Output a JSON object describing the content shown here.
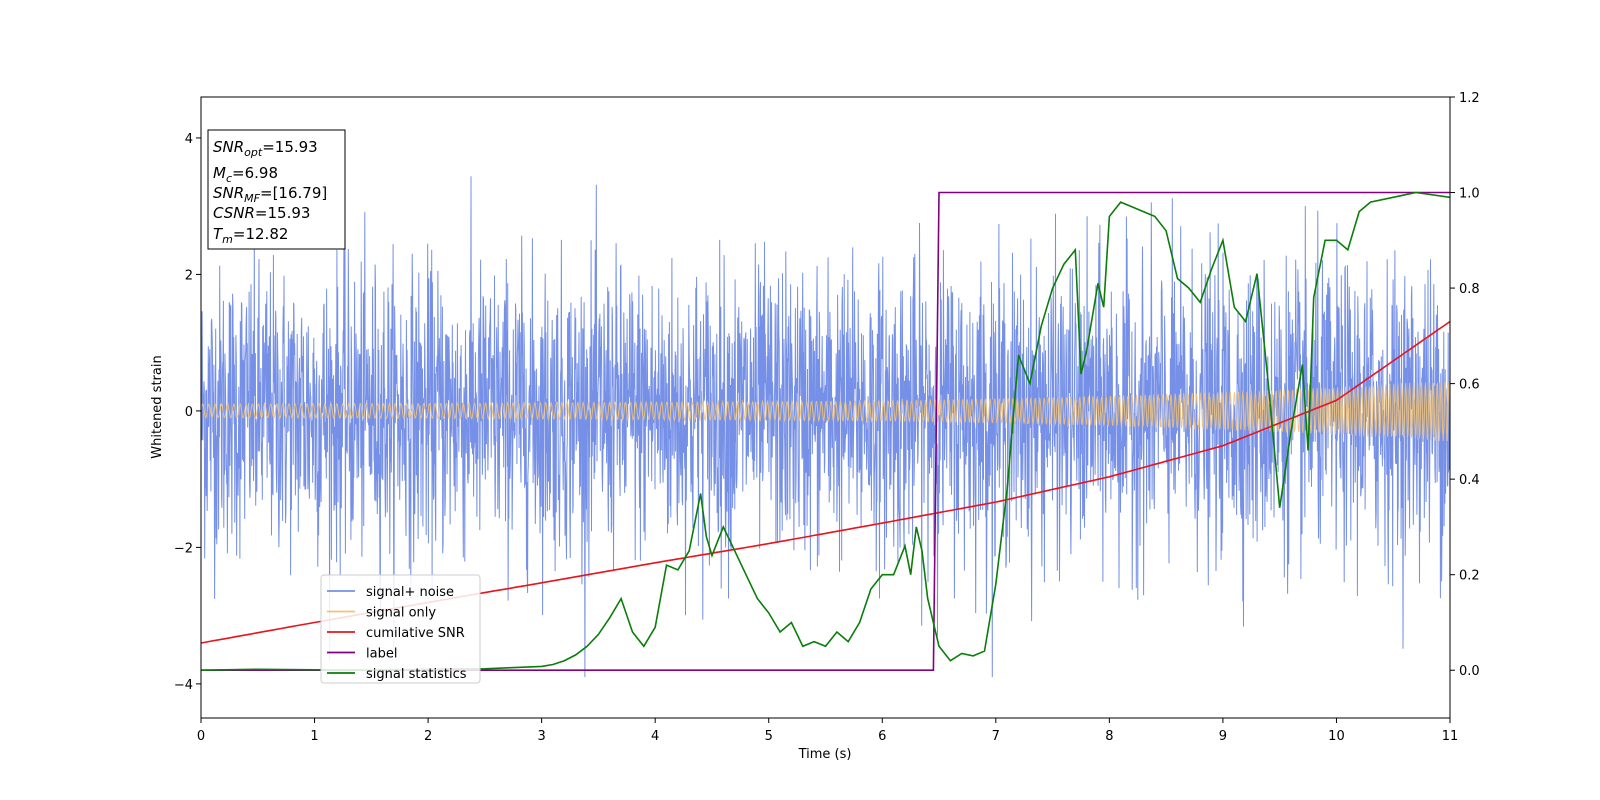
{
  "chart_data": {
    "type": "line",
    "xlabel": "Time (s)",
    "ylabel": "Whitened strain",
    "xlim": [
      0,
      11
    ],
    "ylim_left": [
      -4.5,
      4.6
    ],
    "ylim_right": [
      -0.1,
      1.2
    ],
    "x_ticks": [
      "0",
      "1",
      "2",
      "3",
      "4",
      "5",
      "6",
      "7",
      "8",
      "9",
      "10",
      "11"
    ],
    "y_ticks_left": [
      "−4",
      "−2",
      "0",
      "2",
      "4"
    ],
    "y_ticks_right": [
      "0.0",
      "0.2",
      "0.4",
      "0.6",
      "0.8",
      "1.0",
      "1.2"
    ],
    "grid": false,
    "legend_position": "lower-left",
    "annotation": {
      "snr_opt": {
        "base": "SNR",
        "sub": "opt",
        "value": "=15.93"
      },
      "m_c": {
        "base": "M",
        "sub": "c",
        "value": "=6.98"
      },
      "snr_mf": {
        "base": "SNR",
        "sub": "MF",
        "value": "=[16.79]"
      },
      "csnr": {
        "base": "CSNR",
        "sub": "",
        "value": "=15.93"
      },
      "t_m": {
        "base": "T",
        "sub": "m",
        "value": "=12.82"
      }
    },
    "series": [
      {
        "name": "signal+ noise",
        "color": "#7590e6",
        "axis": "left",
        "description_values": {
          "x_range": [
            0,
            11
          ],
          "approx_envelope": [
            -3.9,
            4.2
          ]
        }
      },
      {
        "name": "signal only",
        "color": "#f0c27a",
        "axis": "left",
        "amplitude": {
          "x": [
            0,
            2,
            4,
            6,
            7,
            8,
            9,
            10,
            11
          ],
          "y": [
            0.1,
            0.11,
            0.13,
            0.15,
            0.18,
            0.22,
            0.28,
            0.35,
            0.45
          ]
        }
      },
      {
        "name": "cumilative SNR",
        "color": "#e8141c",
        "axis": "right",
        "x": [
          0,
          1,
          2,
          3,
          4,
          5,
          6,
          7,
          8,
          9,
          10,
          11
        ],
        "y": [
          0.057,
          0.1,
          0.142,
          0.183,
          0.225,
          0.265,
          0.308,
          0.352,
          0.405,
          0.47,
          0.565,
          0.73
        ]
      },
      {
        "name": "label",
        "color": "#800080",
        "axis": "right",
        "x": [
          0,
          6.45,
          6.5,
          11
        ],
        "y": [
          0.0,
          0.0,
          1.0,
          1.0
        ]
      },
      {
        "name": "signal statistics",
        "color": "#0a7d0a",
        "axis": "right",
        "x": [
          0,
          0.5,
          1,
          1.5,
          2,
          2.5,
          2.7,
          3,
          3.1,
          3.2,
          3.3,
          3.4,
          3.5,
          3.6,
          3.7,
          3.8,
          3.9,
          4,
          4.1,
          4.2,
          4.3,
          4.4,
          4.45,
          4.5,
          4.6,
          4.7,
          4.8,
          4.9,
          5,
          5.1,
          5.2,
          5.3,
          5.4,
          5.5,
          5.6,
          5.7,
          5.8,
          5.9,
          6,
          6.1,
          6.2,
          6.25,
          6.3,
          6.35,
          6.4,
          6.5,
          6.6,
          6.7,
          6.8,
          6.9,
          7,
          7.1,
          7.2,
          7.3,
          7.4,
          7.5,
          7.6,
          7.7,
          7.75,
          7.8,
          7.9,
          7.95,
          8,
          8.1,
          8.2,
          8.3,
          8.4,
          8.5,
          8.6,
          8.7,
          8.8,
          8.9,
          9,
          9.1,
          9.2,
          9.3,
          9.4,
          9.5,
          9.6,
          9.7,
          9.75,
          9.8,
          9.9,
          10,
          10.1,
          10.2,
          10.3,
          10.5,
          10.7,
          11
        ],
        "y": [
          0.0,
          0.002,
          0.001,
          0.0,
          0.002,
          0.003,
          0.005,
          0.008,
          0.012,
          0.02,
          0.032,
          0.05,
          0.075,
          0.11,
          0.15,
          0.08,
          0.05,
          0.09,
          0.22,
          0.21,
          0.25,
          0.37,
          0.28,
          0.24,
          0.3,
          0.25,
          0.2,
          0.15,
          0.12,
          0.08,
          0.1,
          0.05,
          0.06,
          0.05,
          0.08,
          0.06,
          0.1,
          0.17,
          0.2,
          0.2,
          0.26,
          0.2,
          0.3,
          0.25,
          0.15,
          0.05,
          0.02,
          0.035,
          0.03,
          0.04,
          0.18,
          0.38,
          0.66,
          0.6,
          0.72,
          0.8,
          0.85,
          0.88,
          0.62,
          0.67,
          0.81,
          0.76,
          0.95,
          0.98,
          0.97,
          0.96,
          0.95,
          0.92,
          0.82,
          0.8,
          0.77,
          0.84,
          0.9,
          0.76,
          0.73,
          0.83,
          0.6,
          0.34,
          0.5,
          0.64,
          0.46,
          0.78,
          0.9,
          0.9,
          0.88,
          0.96,
          0.98,
          0.99,
          1.0,
          0.99
        ]
      }
    ]
  }
}
